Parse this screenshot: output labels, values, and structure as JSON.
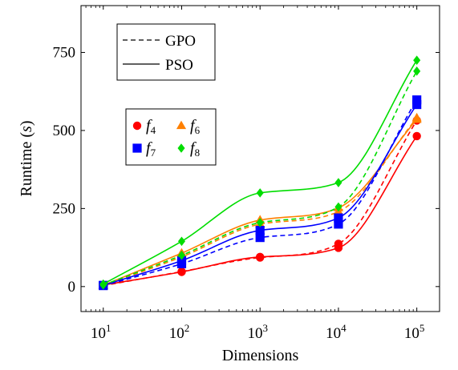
{
  "chart_data": {
    "type": "line",
    "xlabel": "Dimensions",
    "ylabel_main": "Runtime",
    "ylabel_unit": "s",
    "x_scale": "log",
    "x": [
      10,
      100,
      1000,
      10000,
      100000
    ],
    "x_tick_labels": [
      {
        "base": "10",
        "exp": "1"
      },
      {
        "base": "10",
        "exp": "2"
      },
      {
        "base": "10",
        "exp": "3"
      },
      {
        "base": "10",
        "exp": "4"
      },
      {
        "base": "10",
        "exp": "5"
      }
    ],
    "xlim": [
      5.2,
      195000
    ],
    "ylim": [
      -80,
      900
    ],
    "y_ticks": [
      0,
      250,
      500,
      750
    ],
    "grid": false,
    "style_legend": {
      "placement": "top-left",
      "entries": [
        {
          "label": "GPO",
          "dash": "dashed"
        },
        {
          "label": "PSO",
          "dash": "solid"
        }
      ]
    },
    "function_legend": {
      "placement": "left-middle",
      "entries": [
        {
          "name": "f",
          "sub": "4",
          "color": "#ff0000",
          "marker": "circle"
        },
        {
          "name": "f",
          "sub": "6",
          "color": "#ff8000",
          "marker": "triangle"
        },
        {
          "name": "f",
          "sub": "7",
          "color": "#0000ff",
          "marker": "square"
        },
        {
          "name": "f",
          "sub": "8",
          "color": "#00dd00",
          "marker": "diamond"
        }
      ]
    },
    "series": [
      {
        "function": "f4",
        "method": "GPO",
        "color": "#ff0000",
        "marker": "circle",
        "dash": "dashed",
        "values": [
          3,
          48,
          93,
          137,
          532
        ]
      },
      {
        "function": "f4",
        "method": "PSO",
        "color": "#ff0000",
        "marker": "circle",
        "dash": "solid",
        "values": [
          5,
          47,
          95,
          124,
          482
        ]
      },
      {
        "function": "f6",
        "method": "GPO",
        "color": "#ff8000",
        "marker": "triangle",
        "dash": "dashed",
        "values": [
          3,
          95,
          200,
          240,
          540
        ]
      },
      {
        "function": "f6",
        "method": "PSO",
        "color": "#ff8000",
        "marker": "triangle",
        "dash": "solid",
        "values": [
          4,
          107,
          213,
          252,
          535
        ]
      },
      {
        "function": "f7",
        "method": "GPO",
        "color": "#0000ff",
        "marker": "square",
        "dash": "dashed",
        "values": [
          3,
          73,
          157,
          200,
          598
        ]
      },
      {
        "function": "f7",
        "method": "PSO",
        "color": "#0000ff",
        "marker": "square",
        "dash": "solid",
        "values": [
          4,
          83,
          180,
          220,
          583
        ]
      },
      {
        "function": "f8",
        "method": "GPO",
        "color": "#00dd00",
        "marker": "diamond",
        "dash": "dashed",
        "values": [
          5,
          100,
          205,
          255,
          690
        ]
      },
      {
        "function": "f8",
        "method": "PSO",
        "color": "#00dd00",
        "marker": "diamond",
        "dash": "solid",
        "values": [
          8,
          145,
          300,
          333,
          725
        ]
      }
    ]
  }
}
